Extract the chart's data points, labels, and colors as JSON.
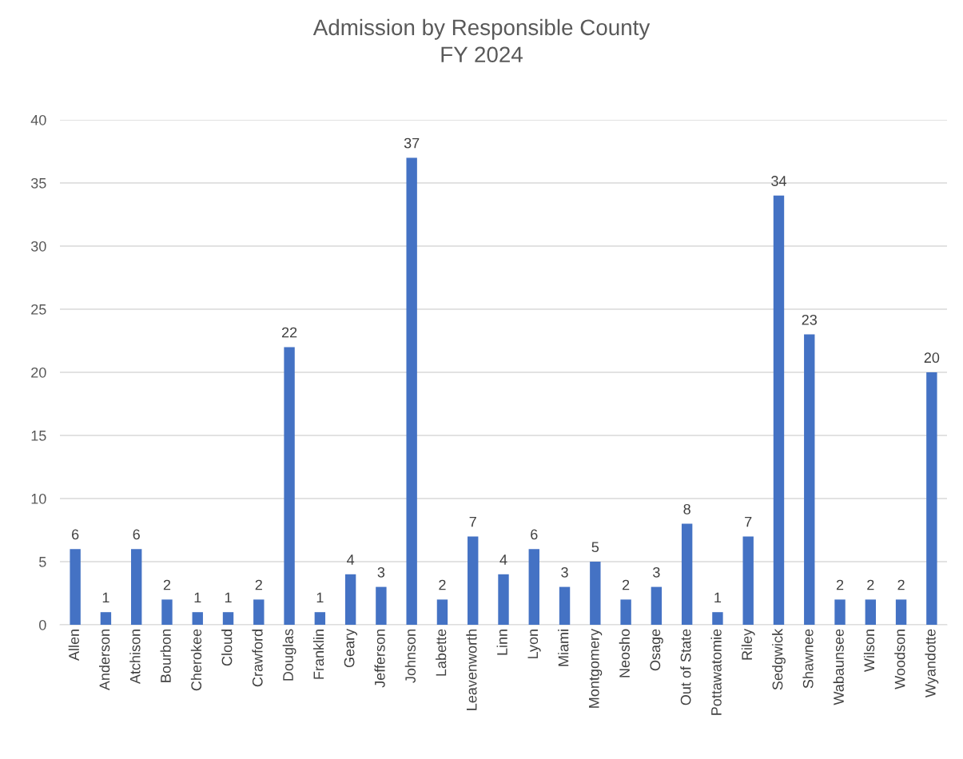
{
  "chart_data": {
    "type": "bar",
    "title": "Admission by Responsible County\nFY 2024",
    "categories": [
      "Allen",
      "Anderson",
      "Atchison",
      "Bourbon",
      "Cherokee",
      "Cloud",
      "Crawford",
      "Douglas",
      "Franklin",
      "Geary",
      "Jefferson",
      "Johnson",
      "Labette",
      "Leavenworth",
      "Linn",
      "Lyon",
      "Miami",
      "Montgomery",
      "Neosho",
      "Osage",
      "Out of State",
      "Pottawatomie",
      "Riley",
      "Sedgwick",
      "Shawnee",
      "Wabaunsee",
      "Wilson",
      "Woodson",
      "Wyandotte"
    ],
    "values": [
      6,
      1,
      6,
      2,
      1,
      1,
      2,
      22,
      1,
      4,
      3,
      37,
      2,
      7,
      4,
      6,
      3,
      5,
      2,
      3,
      8,
      1,
      7,
      34,
      23,
      2,
      2,
      2,
      20
    ],
    "color": "#4472c4",
    "ylim": [
      0,
      40
    ],
    "yticks": [
      0,
      5,
      10,
      15,
      20,
      25,
      30,
      35,
      40
    ],
    "grid": "y",
    "data_labels": true
  }
}
